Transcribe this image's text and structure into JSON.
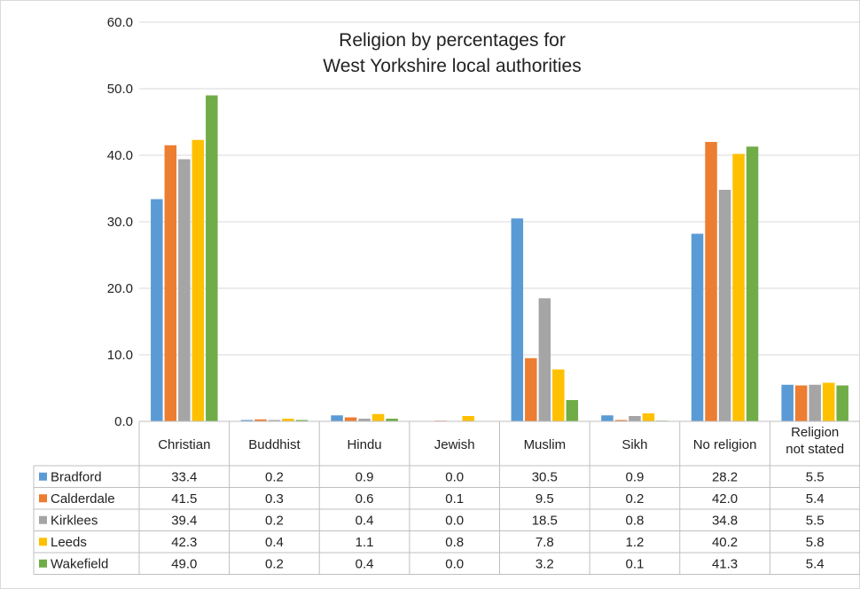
{
  "chart_data": {
    "type": "bar",
    "title_lines": [
      "Religion by percentages for",
      "West Yorkshire local authorities"
    ],
    "categories": [
      [
        "Christian"
      ],
      [
        "Buddhist"
      ],
      [
        "Hindu"
      ],
      [
        "Jewish"
      ],
      [
        "Muslim"
      ],
      [
        "Sikh"
      ],
      [
        "No religion"
      ],
      [
        "Religion",
        "not stated"
      ]
    ],
    "y_ticks": [
      "0.0",
      "10.0",
      "20.0",
      "30.0",
      "40.0",
      "50.0",
      "60.0"
    ],
    "ylim": [
      0,
      60
    ],
    "grid": true,
    "legend": "data-table",
    "series": [
      {
        "name": "Bradford",
        "color": "#5B9BD5",
        "values": [
          33.4,
          0.2,
          0.9,
          0.0,
          30.5,
          0.9,
          28.2,
          5.5
        ],
        "labels": [
          "33.4",
          "0.2",
          "0.9",
          "0.0",
          "30.5",
          "0.9",
          "28.2",
          "5.5"
        ]
      },
      {
        "name": "Calderdale",
        "color": "#ED7D31",
        "values": [
          41.5,
          0.3,
          0.6,
          0.1,
          9.5,
          0.2,
          42.0,
          5.4
        ],
        "labels": [
          "41.5",
          "0.3",
          "0.6",
          "0.1",
          "9.5",
          "0.2",
          "42.0",
          "5.4"
        ]
      },
      {
        "name": "Kirklees",
        "color": "#A5A5A5",
        "values": [
          39.4,
          0.2,
          0.4,
          0.0,
          18.5,
          0.8,
          34.8,
          5.5
        ],
        "labels": [
          "39.4",
          "0.2",
          "0.4",
          "0.0",
          "18.5",
          "0.8",
          "34.8",
          "5.5"
        ]
      },
      {
        "name": "Leeds",
        "color": "#FFC000",
        "values": [
          42.3,
          0.4,
          1.1,
          0.8,
          7.8,
          1.2,
          40.2,
          5.8
        ],
        "labels": [
          "42.3",
          "0.4",
          "1.1",
          "0.8",
          "7.8",
          "1.2",
          "40.2",
          "5.8"
        ]
      },
      {
        "name": "Wakefield",
        "color": "#70AD47",
        "values": [
          49.0,
          0.2,
          0.4,
          0.0,
          3.2,
          0.1,
          41.3,
          5.4
        ],
        "labels": [
          "49.0",
          "0.2",
          "0.4",
          "0.0",
          "3.2",
          "0.1",
          "41.3",
          "5.4"
        ]
      }
    ]
  }
}
